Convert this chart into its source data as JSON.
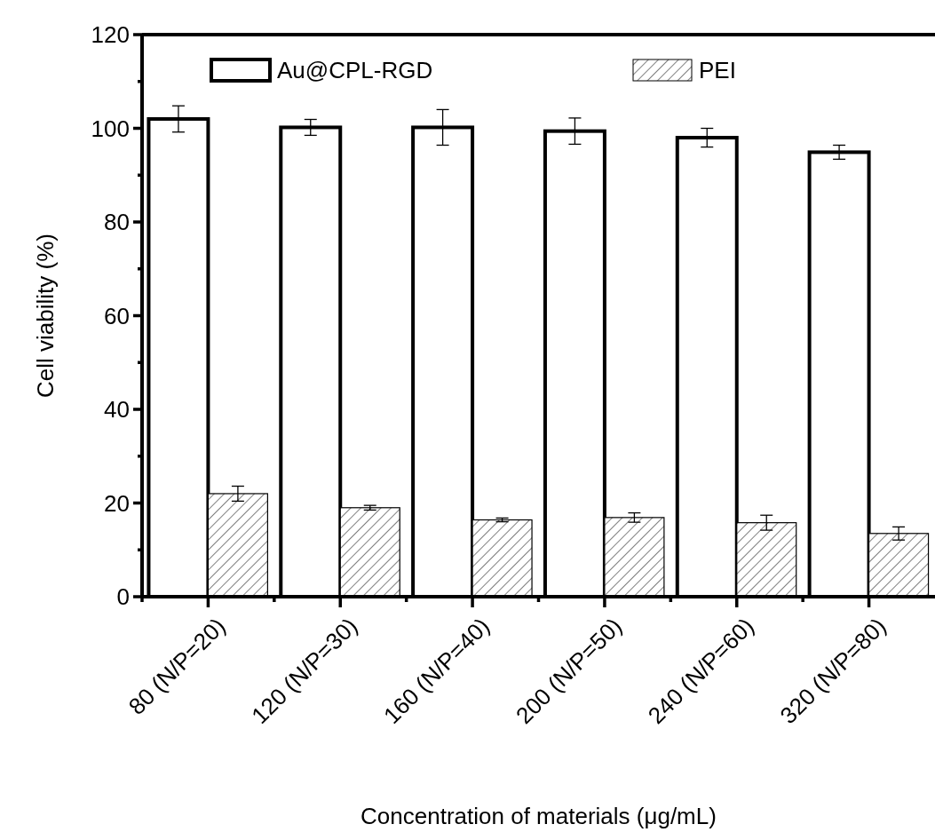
{
  "chart_data": {
    "type": "bar",
    "xlabel": "Concentration of materials (μg/mL)",
    "ylabel": "Cell viability (%)",
    "categories": [
      "80 (N/P=20)",
      "120  (N/P=30)",
      "160  (N/P=40)",
      "200  (N/P=50)",
      "240  (N/P=60)",
      "320  (N/P=80)"
    ],
    "series": [
      {
        "name": "Au@CPL-RGD",
        "color": "#ffffff",
        "values": [
          102.0,
          100.2,
          100.2,
          99.4,
          98.0,
          94.9
        ],
        "errors": [
          2.8,
          1.7,
          3.8,
          2.8,
          2.0,
          1.5
        ]
      },
      {
        "name": "PEI",
        "color": "#000000",
        "values": [
          22.0,
          19.0,
          16.4,
          16.9,
          15.8,
          13.5
        ],
        "errors": [
          1.6,
          0.5,
          0.4,
          1.0,
          1.6,
          1.4
        ]
      }
    ],
    "ylim": [
      0,
      120
    ],
    "yticks": [
      0,
      {
        "value": 10,
        "label": null
      },
      20,
      {
        "value": 30,
        "label": null
      },
      40,
      {
        "value": 50,
        "label": null
      },
      60,
      {
        "value": 70,
        "label": null
      },
      80,
      {
        "value": 90,
        "label": null
      },
      100,
      {
        "value": 110,
        "label": null
      },
      120
    ],
    "legend": "top"
  }
}
